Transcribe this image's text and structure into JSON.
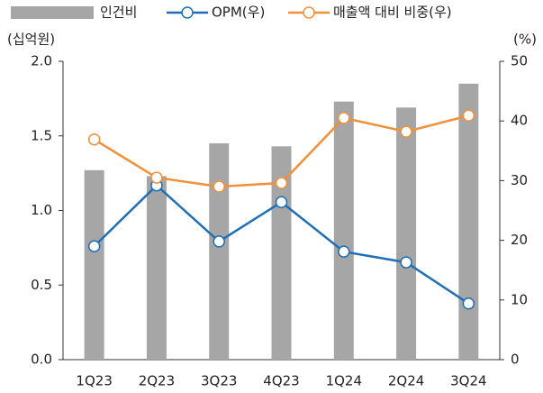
{
  "chart_data": {
    "type": "bar",
    "y_label": "(십억원)",
    "y2_label": "(%)",
    "categories": [
      "1Q23",
      "2Q23",
      "3Q23",
      "4Q23",
      "1Q24",
      "2Q24",
      "3Q24"
    ],
    "series": [
      {
        "name": "인건비",
        "type": "bar",
        "color": "#a6a6a6",
        "values": [
          1.27,
          1.23,
          1.45,
          1.43,
          1.73,
          1.69,
          1.85
        ]
      },
      {
        "name": "OPM(우)",
        "type": "line",
        "axis": "y2",
        "color": "#1f6fb8",
        "values": [
          19.0,
          29.2,
          19.8,
          26.4,
          18.1,
          16.3,
          9.4
        ]
      },
      {
        "name": "매출액 대비 비중(우)",
        "type": "line",
        "axis": "y2",
        "color": "#f0913a",
        "values": [
          36.9,
          30.5,
          29.0,
          29.6,
          40.5,
          38.2,
          40.9
        ]
      }
    ],
    "ylim": [
      0,
      2
    ],
    "yticks": [
      {
        "value": 0,
        "label": "0.0"
      },
      {
        "value": 0.5,
        "label": "0.5"
      },
      {
        "value": 1,
        "label": "1.0"
      },
      {
        "value": 1.5,
        "label": "1.5"
      },
      {
        "value": 2,
        "label": "2.0"
      }
    ],
    "y2lim": [
      0,
      50
    ],
    "y2ticks": [
      0,
      10,
      20,
      30,
      40,
      50
    ],
    "grid": false
  }
}
